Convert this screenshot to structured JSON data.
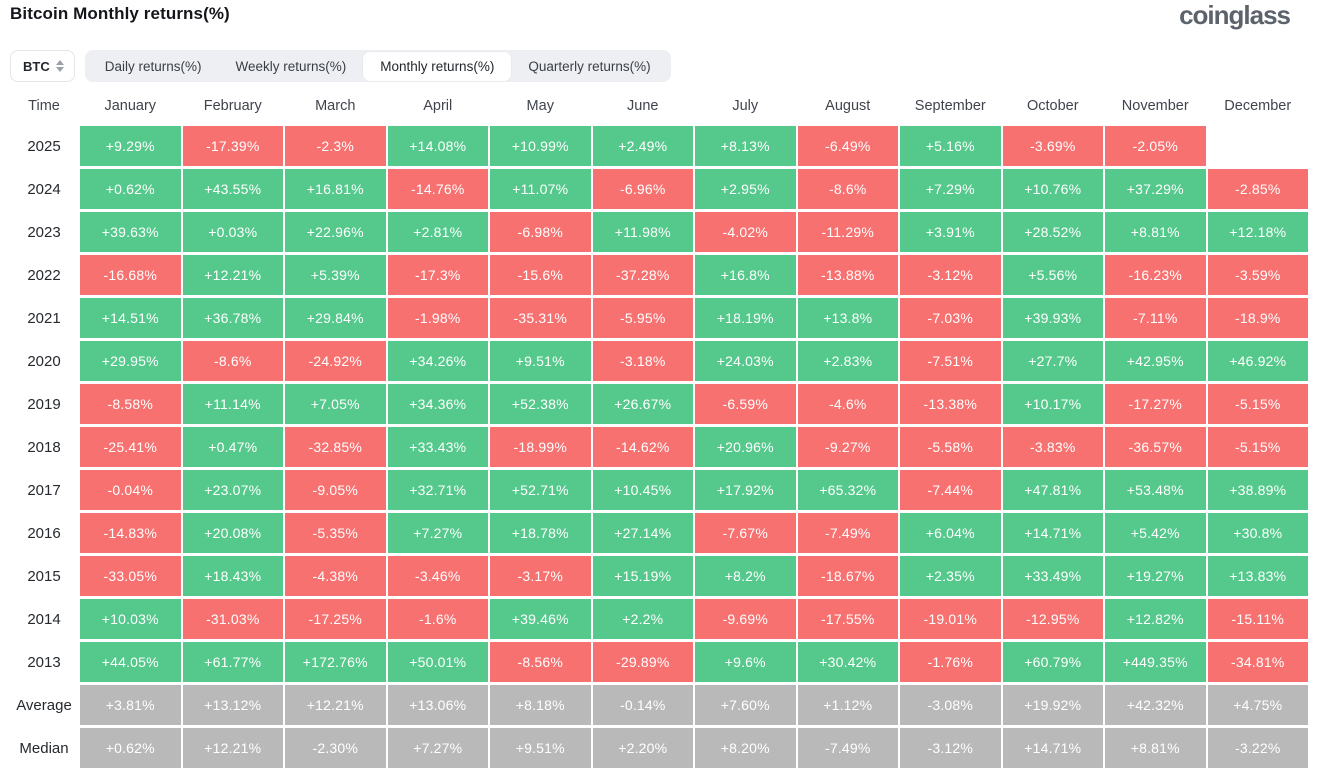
{
  "page": {
    "title": "Bitcoin Monthly returns(%)",
    "logo_text": "coinglass"
  },
  "controls": {
    "symbol_select": {
      "value": "BTC"
    },
    "tabs": [
      {
        "label": "Daily returns(%)",
        "active": false
      },
      {
        "label": "Weekly returns(%)",
        "active": false
      },
      {
        "label": "Monthly returns(%)",
        "active": true
      },
      {
        "label": "Quarterly returns(%)",
        "active": false
      }
    ]
  },
  "colors": {
    "positive": "#55c98c",
    "negative": "#f77170",
    "summary": "#b9b9b9"
  },
  "chart_data": {
    "type": "table",
    "title": "Bitcoin Monthly returns(%)",
    "time_header": "Time",
    "months": [
      "January",
      "February",
      "March",
      "April",
      "May",
      "June",
      "July",
      "August",
      "September",
      "October",
      "November",
      "December"
    ],
    "rows": [
      {
        "label": "2025",
        "type": "year",
        "values": [
          "+9.29%",
          "-17.39%",
          "-2.3%",
          "+14.08%",
          "+10.99%",
          "+2.49%",
          "+8.13%",
          "-6.49%",
          "+5.16%",
          "-3.69%",
          "-2.05%",
          ""
        ]
      },
      {
        "label": "2024",
        "type": "year",
        "values": [
          "+0.62%",
          "+43.55%",
          "+16.81%",
          "-14.76%",
          "+11.07%",
          "-6.96%",
          "+2.95%",
          "-8.6%",
          "+7.29%",
          "+10.76%",
          "+37.29%",
          "-2.85%"
        ]
      },
      {
        "label": "2023",
        "type": "year",
        "values": [
          "+39.63%",
          "+0.03%",
          "+22.96%",
          "+2.81%",
          "-6.98%",
          "+11.98%",
          "-4.02%",
          "-11.29%",
          "+3.91%",
          "+28.52%",
          "+8.81%",
          "+12.18%"
        ]
      },
      {
        "label": "2022",
        "type": "year",
        "values": [
          "-16.68%",
          "+12.21%",
          "+5.39%",
          "-17.3%",
          "-15.6%",
          "-37.28%",
          "+16.8%",
          "-13.88%",
          "-3.12%",
          "+5.56%",
          "-16.23%",
          "-3.59%"
        ]
      },
      {
        "label": "2021",
        "type": "year",
        "values": [
          "+14.51%",
          "+36.78%",
          "+29.84%",
          "-1.98%",
          "-35.31%",
          "-5.95%",
          "+18.19%",
          "+13.8%",
          "-7.03%",
          "+39.93%",
          "-7.11%",
          "-18.9%"
        ]
      },
      {
        "label": "2020",
        "type": "year",
        "values": [
          "+29.95%",
          "-8.6%",
          "-24.92%",
          "+34.26%",
          "+9.51%",
          "-3.18%",
          "+24.03%",
          "+2.83%",
          "-7.51%",
          "+27.7%",
          "+42.95%",
          "+46.92%"
        ]
      },
      {
        "label": "2019",
        "type": "year",
        "values": [
          "-8.58%",
          "+11.14%",
          "+7.05%",
          "+34.36%",
          "+52.38%",
          "+26.67%",
          "-6.59%",
          "-4.6%",
          "-13.38%",
          "+10.17%",
          "-17.27%",
          "-5.15%"
        ]
      },
      {
        "label": "2018",
        "type": "year",
        "values": [
          "-25.41%",
          "+0.47%",
          "-32.85%",
          "+33.43%",
          "-18.99%",
          "-14.62%",
          "+20.96%",
          "-9.27%",
          "-5.58%",
          "-3.83%",
          "-36.57%",
          "-5.15%"
        ]
      },
      {
        "label": "2017",
        "type": "year",
        "values": [
          "-0.04%",
          "+23.07%",
          "-9.05%",
          "+32.71%",
          "+52.71%",
          "+10.45%",
          "+17.92%",
          "+65.32%",
          "-7.44%",
          "+47.81%",
          "+53.48%",
          "+38.89%"
        ]
      },
      {
        "label": "2016",
        "type": "year",
        "values": [
          "-14.83%",
          "+20.08%",
          "-5.35%",
          "+7.27%",
          "+18.78%",
          "+27.14%",
          "-7.67%",
          "-7.49%",
          "+6.04%",
          "+14.71%",
          "+5.42%",
          "+30.8%"
        ]
      },
      {
        "label": "2015",
        "type": "year",
        "values": [
          "-33.05%",
          "+18.43%",
          "-4.38%",
          "-3.46%",
          "-3.17%",
          "+15.19%",
          "+8.2%",
          "-18.67%",
          "+2.35%",
          "+33.49%",
          "+19.27%",
          "+13.83%"
        ]
      },
      {
        "label": "2014",
        "type": "year",
        "values": [
          "+10.03%",
          "-31.03%",
          "-17.25%",
          "-1.6%",
          "+39.46%",
          "+2.2%",
          "-9.69%",
          "-17.55%",
          "-19.01%",
          "-12.95%",
          "+12.82%",
          "-15.11%"
        ]
      },
      {
        "label": "2013",
        "type": "year",
        "values": [
          "+44.05%",
          "+61.77%",
          "+172.76%",
          "+50.01%",
          "-8.56%",
          "-29.89%",
          "+9.6%",
          "+30.42%",
          "-1.76%",
          "+60.79%",
          "+449.35%",
          "-34.81%"
        ]
      },
      {
        "label": "Average",
        "type": "summary",
        "values": [
          "+3.81%",
          "+13.12%",
          "+12.21%",
          "+13.06%",
          "+8.18%",
          "-0.14%",
          "+7.60%",
          "+1.12%",
          "-3.08%",
          "+19.92%",
          "+42.32%",
          "+4.75%"
        ]
      },
      {
        "label": "Median",
        "type": "summary",
        "values": [
          "+0.62%",
          "+12.21%",
          "-2.30%",
          "+7.27%",
          "+9.51%",
          "+2.20%",
          "+8.20%",
          "-7.49%",
          "-3.12%",
          "+14.71%",
          "+8.81%",
          "-3.22%"
        ]
      }
    ]
  }
}
